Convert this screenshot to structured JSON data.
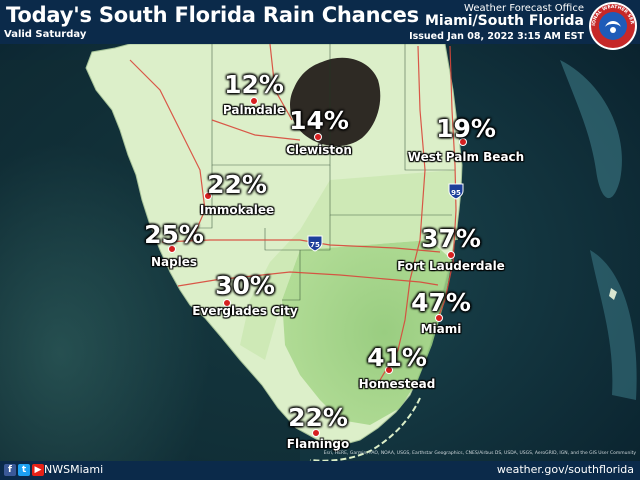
{
  "header": {
    "title": "Today's South Florida Rain Chances",
    "valid": "Valid Saturday",
    "office": "Weather Forecast Office",
    "office_location": "Miami/South Florida",
    "issued": "Issued Jan 08, 2022 3:15 AM EST"
  },
  "logo": {
    "icon": "noaa-nws-logo",
    "text": "NATIONAL WEATHER SERVICE"
  },
  "highway_shields": [
    "75",
    "95"
  ],
  "cities": [
    {
      "name": "Palmdale",
      "chance": "12%"
    },
    {
      "name": "Clewiston",
      "chance": "14%"
    },
    {
      "name": "West Palm Beach",
      "chance": "19%"
    },
    {
      "name": "Immokalee",
      "chance": "22%"
    },
    {
      "name": "Naples",
      "chance": "25%"
    },
    {
      "name": "Fort Lauderdale",
      "chance": "37%"
    },
    {
      "name": "Everglades City",
      "chance": "30%"
    },
    {
      "name": "Miami",
      "chance": "47%"
    },
    {
      "name": "Homestead",
      "chance": "41%"
    },
    {
      "name": "Flamingo",
      "chance": "22%"
    }
  ],
  "attribution": "Esri, HERE, Garmin, FAO, NOAA, USGS, Earthstar Geographics, CNES/Airbus DS, USDA, USGS, AeroGRID, IGN, and the GIS User Community",
  "footer": {
    "social_icons": [
      "facebook-icon",
      "twitter-icon",
      "youtube-icon"
    ],
    "handle": "NWSMiami",
    "website": "weather.gov/southflorida"
  },
  "colors": {
    "header_bg": "#0b2a4a",
    "ocean": "#0c2c3a",
    "land": "#dcefc9",
    "land_mid": "#bfe2a3",
    "land_high": "#93cd7a",
    "lake": "#2e2a24",
    "dot": "#d62020",
    "roads": "#d9473a"
  }
}
